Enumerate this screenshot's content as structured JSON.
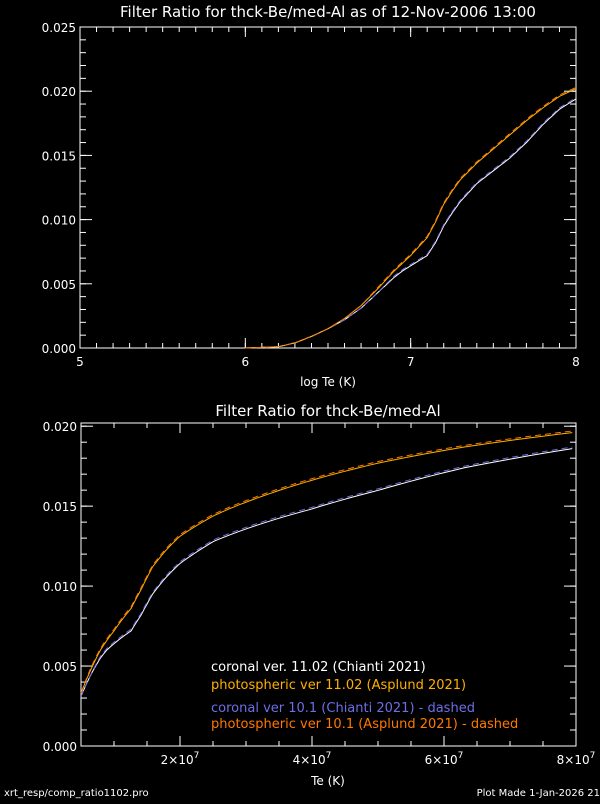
{
  "chart_data": [
    {
      "type": "line",
      "title": "Filter Ratio for thck-Be/med-Al as of 12-Nov-2006 13:00",
      "xlabel": "log Te (K)",
      "ylabel": "",
      "xscale": "log-temperature",
      "xlim": [
        5,
        8
      ],
      "ylim": [
        0,
        0.025
      ],
      "xticks": [
        5,
        6,
        7,
        8
      ],
      "xtick_labels": [
        "5",
        "6",
        "7",
        "8"
      ],
      "yticks": [
        0,
        0.005,
        0.01,
        0.015,
        0.02,
        0.025
      ],
      "ytick_labels": [
        "0.000",
        "0.005",
        "0.010",
        "0.015",
        "0.020",
        "0.025"
      ],
      "grid": false
    },
    {
      "type": "line",
      "title": "Filter Ratio for thck-Be/med-Al",
      "xlabel": "Te (K)",
      "ylabel": "",
      "xscale": "linear-temperature",
      "xlim": [
        5000000,
        80000000
      ],
      "ylim": [
        0,
        0.0202
      ],
      "xticks": [
        20000000,
        40000000,
        60000000,
        80000000
      ],
      "xtick_labels": [
        {
          "m": "2",
          "e": "7"
        },
        {
          "m": "4",
          "e": "7"
        },
        {
          "m": "6",
          "e": "7"
        },
        {
          "m": "8",
          "e": "7"
        }
      ],
      "yticks": [
        0,
        0.005,
        0.01,
        0.015,
        0.02
      ],
      "ytick_labels": [
        "0.000",
        "0.005",
        "0.010",
        "0.015",
        "0.020"
      ],
      "grid": false,
      "legend_placement": "bottom-right"
    }
  ],
  "series": [
    {
      "name": "coronal ver. 11.02 (Chianti 2021)",
      "color": "#ffffff",
      "dashed": false,
      "logT": [
        6.0,
        6.2,
        6.3,
        6.4,
        6.5,
        6.6,
        6.7,
        6.8,
        6.9,
        6.95,
        7.0,
        7.05,
        7.1,
        7.15,
        7.2,
        7.25,
        7.3,
        7.4,
        7.5,
        7.6,
        7.7,
        7.8,
        7.9,
        8.0
      ],
      "values": [
        0,
        0.0001,
        0.0004,
        0.0009,
        0.0015,
        0.0022,
        0.0031,
        0.0043,
        0.0055,
        0.006,
        0.0064,
        0.0068,
        0.0072,
        0.0082,
        0.0095,
        0.0105,
        0.0114,
        0.0128,
        0.0138,
        0.0148,
        0.016,
        0.0174,
        0.0186,
        0.0194
      ]
    },
    {
      "name": "photospheric ver 11.02 (Asplund 2021)",
      "color": "#ffb000",
      "dashed": false,
      "logT": [
        6.0,
        6.2,
        6.3,
        6.4,
        6.5,
        6.6,
        6.7,
        6.8,
        6.9,
        6.95,
        7.0,
        7.05,
        7.1,
        7.15,
        7.2,
        7.25,
        7.3,
        7.4,
        7.5,
        7.6,
        7.7,
        7.8,
        7.9,
        8.0
      ],
      "values": [
        0,
        0.0001,
        0.0004,
        0.0009,
        0.0015,
        0.0023,
        0.0033,
        0.0046,
        0.006,
        0.0066,
        0.0072,
        0.0079,
        0.0086,
        0.0098,
        0.0112,
        0.0122,
        0.0131,
        0.0144,
        0.0155,
        0.0166,
        0.0177,
        0.0187,
        0.0196,
        0.0202
      ]
    },
    {
      "name": "coronal ver 10.1 (Chianti 2021) - dashed",
      "color": "#6e6ee6",
      "dashed": true,
      "logT": [
        6.0,
        6.2,
        6.3,
        6.4,
        6.5,
        6.6,
        6.7,
        6.8,
        6.9,
        6.95,
        7.0,
        7.05,
        7.1,
        7.15,
        7.2,
        7.25,
        7.3,
        7.4,
        7.5,
        7.6,
        7.7,
        7.8,
        7.9,
        8.0
      ],
      "values": [
        0,
        0.0001,
        0.0004,
        0.0009,
        0.0015,
        0.0022,
        0.0031,
        0.0043,
        0.0056,
        0.0061,
        0.0065,
        0.0069,
        0.0073,
        0.0083,
        0.0096,
        0.0106,
        0.0115,
        0.0129,
        0.0139,
        0.0149,
        0.0161,
        0.0175,
        0.0187,
        0.0195
      ]
    },
    {
      "name": "photospheric ver 10.1 (Asplund 2021) - dashed",
      "color": "#ff7800",
      "dashed": true,
      "logT": [
        6.0,
        6.2,
        6.3,
        6.4,
        6.5,
        6.6,
        6.7,
        6.8,
        6.9,
        6.95,
        7.0,
        7.05,
        7.1,
        7.15,
        7.2,
        7.25,
        7.3,
        7.4,
        7.5,
        7.6,
        7.7,
        7.8,
        7.9,
        8.0
      ],
      "values": [
        0,
        0.0001,
        0.0004,
        0.0009,
        0.0015,
        0.0023,
        0.0033,
        0.0047,
        0.0061,
        0.0067,
        0.0073,
        0.008,
        0.0087,
        0.0099,
        0.0113,
        0.0123,
        0.0132,
        0.0145,
        0.0156,
        0.0167,
        0.0178,
        0.0188,
        0.0197,
        0.0203
      ]
    }
  ],
  "footer": {
    "left": "xrt_resp/comp_ratio1102.pro",
    "right": "Plot Made  1-Jan-2026 21"
  }
}
